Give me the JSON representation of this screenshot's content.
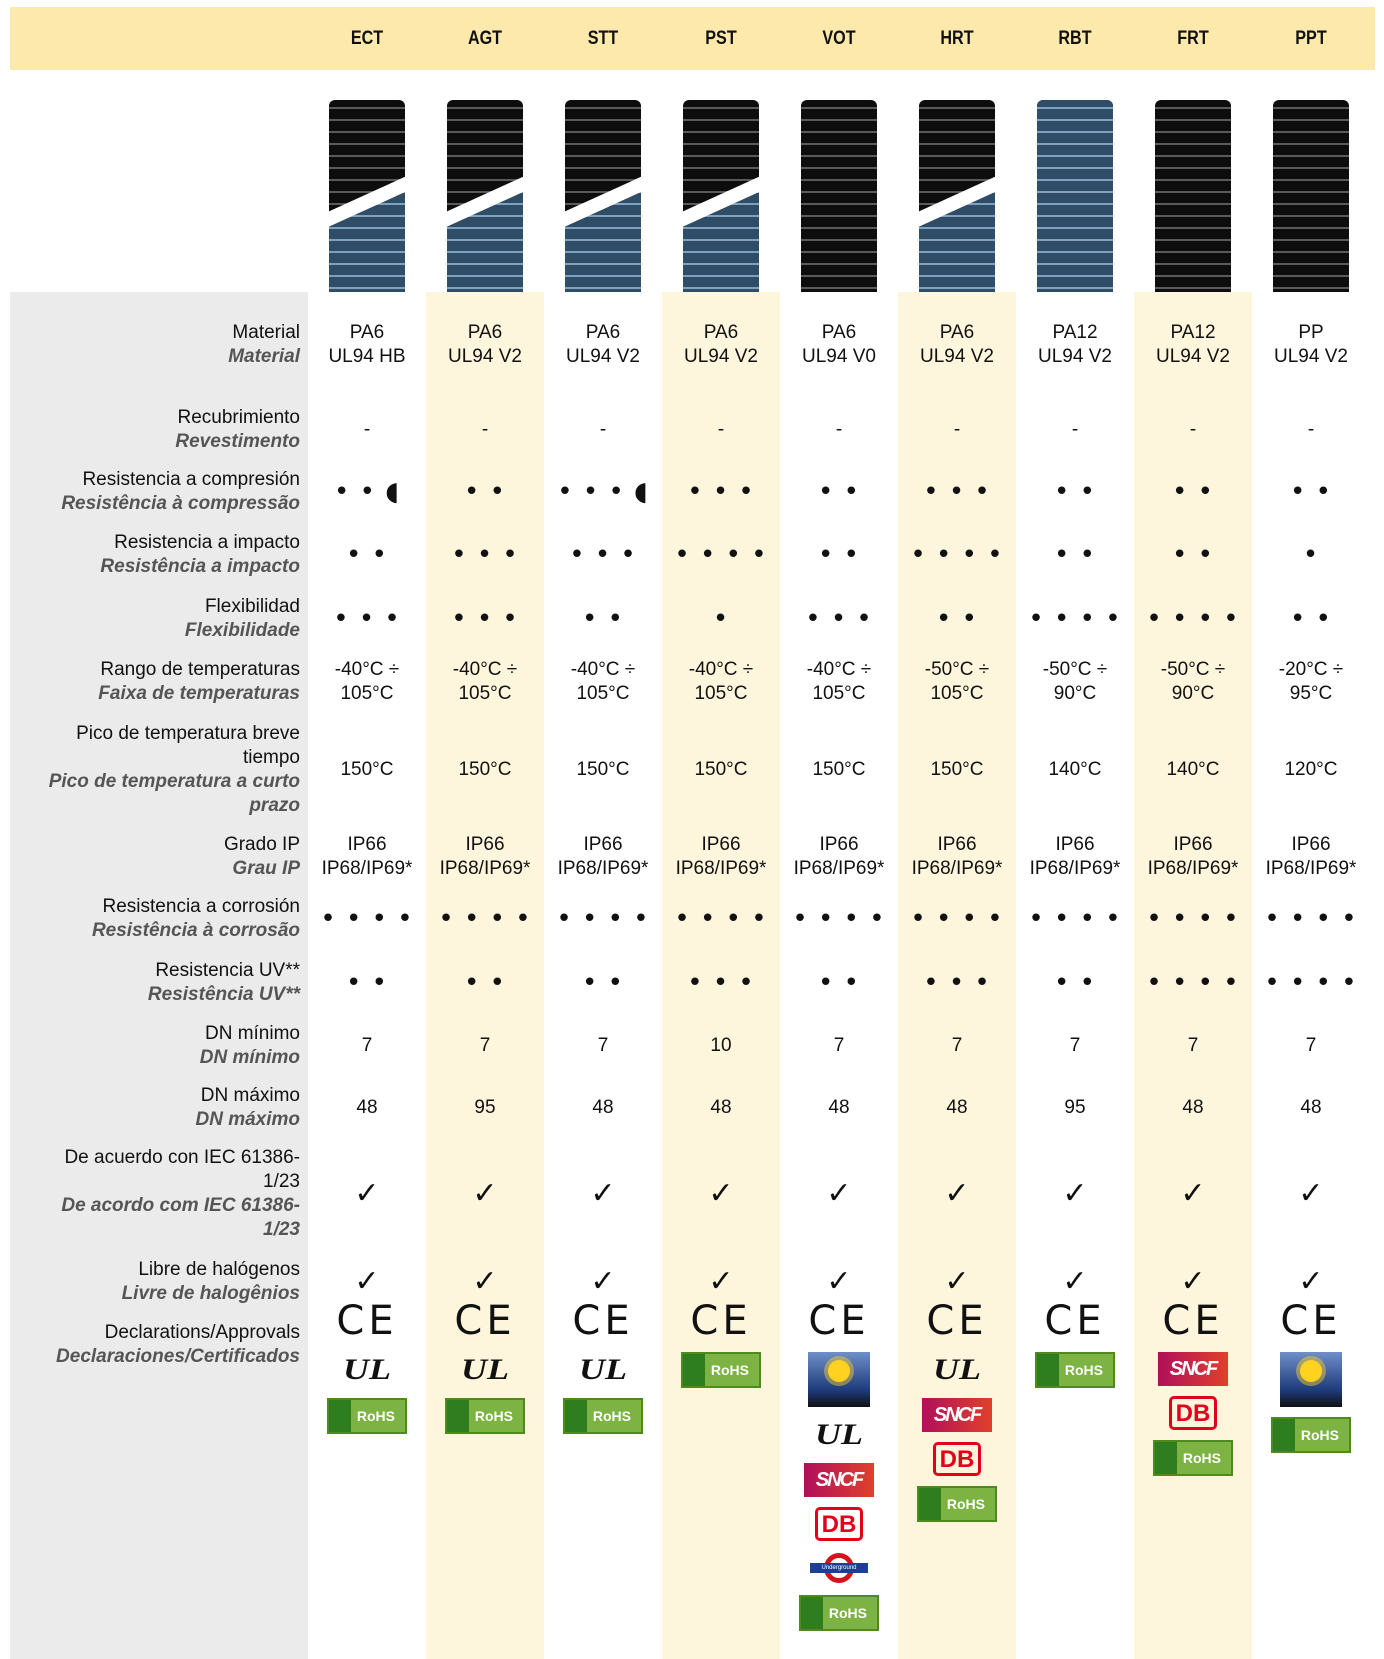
{
  "columns": [
    "ECT",
    "AGT",
    "STT",
    "PST",
    "VOT",
    "HRT",
    "RBT",
    "FRT",
    "PPT"
  ],
  "rows": [
    {
      "label": "Material",
      "label_pt": "Material",
      "cells": [
        "PA6\nUL94 HB",
        "PA6\nUL94 V2",
        "PA6\nUL94 V2",
        "PA6\nUL94 V2",
        "PA6\nUL94 V0",
        "PA6\nUL94 V2",
        "PA12\nUL94 V2",
        "PA12\nUL94 V2",
        "PP\nUL94 V2"
      ]
    },
    {
      "label": "Recubrimiento",
      "label_pt": "Revestimento",
      "cells": [
        "-",
        "-",
        "-",
        "-",
        "-",
        "-",
        "-",
        "-",
        "-"
      ]
    },
    {
      "label": "Resistencia a compresión",
      "label_pt": "Resistência à compressão",
      "cells": [
        "• • ◖",
        "• •",
        "• • • ◖",
        "• • •",
        "• •",
        "• • •",
        "• •",
        "• •",
        "• •"
      ]
    },
    {
      "label": "Resistencia a impacto",
      "label_pt": "Resistência a impacto",
      "cells": [
        "• •",
        "• • •",
        "• • •",
        "• • • •",
        "• •",
        "• • • •",
        "• •",
        "• •",
        "•"
      ]
    },
    {
      "label": "Flexibilidad",
      "label_pt": "Flexibilidade",
      "cells": [
        "• • •",
        "• • •",
        "• •",
        "•",
        "• • •",
        "• •",
        "• • • •",
        "• • • •",
        "• •"
      ]
    },
    {
      "label": "Rango de temperaturas",
      "label_pt": "Faixa de temperaturas",
      "cells": [
        "-40°C ÷\n105°C",
        "-40°C ÷\n105°C",
        "-40°C ÷\n105°C",
        "-40°C ÷\n105°C",
        "-40°C ÷\n105°C",
        "-50°C ÷\n105°C",
        "-50°C ÷\n90°C",
        "-50°C ÷\n90°C",
        "-20°C ÷\n95°C"
      ]
    },
    {
      "label": "Pico de temperatura breve tiempo",
      "label_pt": "Pico de temperatura a curto prazo",
      "cells": [
        "150°C",
        "150°C",
        "150°C",
        "150°C",
        "150°C",
        "150°C",
        "140°C",
        "140°C",
        "120°C"
      ]
    },
    {
      "label": "Grado IP",
      "label_pt": "Grau IP",
      "cells": [
        "IP66\nIP68/IP69*",
        "IP66\nIP68/IP69*",
        "IP66\nIP68/IP69*",
        "IP66\nIP68/IP69*",
        "IP66\nIP68/IP69*",
        "IP66\nIP68/IP69*",
        "IP66\nIP68/IP69*",
        "IP66\nIP68/IP69*",
        "IP66\nIP68/IP69*"
      ]
    },
    {
      "label": "Resistencia a corrosión",
      "label_pt": "Resistência à corrosão",
      "cells": [
        "• • • •",
        "• • • •",
        "• • • •",
        "• • • •",
        "• • • •",
        "• • • •",
        "• • • •",
        "• • • •",
        "• • • •"
      ]
    },
    {
      "label": "Resistencia UV**",
      "label_pt": "Resistência UV**",
      "cells": [
        "• •",
        "• •",
        "• •",
        "• • •",
        "• •",
        "• • •",
        "• •",
        "• • • •",
        "• • • •"
      ]
    },
    {
      "label": "DN mínimo",
      "label_pt": "DN mínimo",
      "cells": [
        7,
        7,
        7,
        10,
        7,
        7,
        7,
        7,
        7
      ]
    },
    {
      "label": "DN máximo",
      "label_pt": "DN máximo",
      "cells": [
        48,
        95,
        48,
        48,
        48,
        48,
        95,
        48,
        48
      ]
    },
    {
      "label": "De acuerdo con IEC 61386-1/23",
      "label_pt": "De acordo com IEC 61386-1/23",
      "cells": [
        "✓",
        "✓",
        "✓",
        "✓",
        "✓",
        "✓",
        "✓",
        "✓",
        "✓"
      ]
    },
    {
      "label": "Libre de halógenos",
      "label_pt": "Livre de halogênios",
      "cells": [
        "✓",
        "✓",
        "✓",
        "✓",
        "✓",
        "✓",
        "✓",
        "✓",
        "✓"
      ]
    },
    {
      "label": "Declarations/Approvals",
      "label_pt": "Declaraciones/Certificados",
      "cells": [
        [
          "CE",
          "UL",
          "RoHS"
        ],
        [
          "CE",
          "UL",
          "RoHS"
        ],
        [
          "CE",
          "UL",
          "RoHS"
        ],
        [
          "CE",
          "RoHS"
        ],
        [
          "CE",
          "sun",
          "UL",
          "SNCF",
          "DB",
          "Underground",
          "RoHS"
        ],
        [
          "CE",
          "UL",
          "SNCF",
          "DB",
          "RoHS"
        ],
        [
          "CE",
          "RoHS"
        ],
        [
          "CE",
          "SNCF",
          "DB",
          "RoHS"
        ],
        [
          "CE",
          "sun",
          "RoHS"
        ]
      ]
    }
  ]
}
